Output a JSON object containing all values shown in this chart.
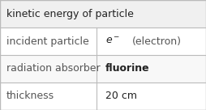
{
  "title": "kinetic energy of particle",
  "rows": [
    [
      "incident particle",
      "e⁻ (electron)"
    ],
    [
      "radiation absorber",
      "fluorine"
    ],
    [
      "thickness",
      "20 cm"
    ]
  ],
  "col_split": 0.47,
  "title_bg": "#f0f0f0",
  "row_bg_odd": "#ffffff",
  "row_bg_even": "#f8f8f8",
  "border_color": "#bbbbbb",
  "title_fontsize": 9,
  "cell_fontsize": 9,
  "title_color": "#222222",
  "label_color": "#555555",
  "value_color": "#222222"
}
